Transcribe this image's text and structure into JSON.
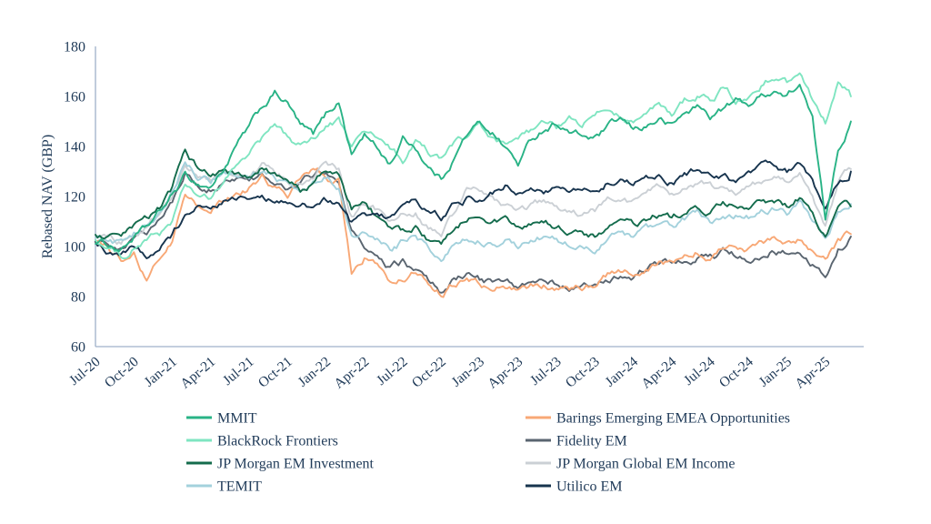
{
  "chart_data": {
    "type": "line",
    "title": "",
    "ylabel": "Rebased NAV (GBP)",
    "xlabel": "",
    "ylim": [
      60,
      180
    ],
    "yticks": [
      60,
      80,
      100,
      120,
      140,
      160,
      180
    ],
    "grid": false,
    "legend_position": "bottom-two-columns",
    "axis_color": "#9FB1C9",
    "text_color": "#1F3A58",
    "background_color": "#FFFFFF",
    "x_tick_labels": [
      "Jul-20",
      "Oct-20",
      "Jan-21",
      "Apr-21",
      "Jul-21",
      "Oct-21",
      "Jan-22",
      "Apr-22",
      "Jul-22",
      "Oct-22",
      "Jan-23",
      "Apr-23",
      "Jul-23",
      "Oct-23",
      "Jan-24",
      "Apr-24",
      "Jul-24",
      "Oct-24",
      "Jan-25",
      "Apr-25"
    ],
    "x_unit": "month",
    "x_start": "Jul-20",
    "x_end": "Jun-25",
    "series": [
      {
        "name": "MMIT",
        "color": "#29B386",
        "legend_column": "left",
        "values": [
          102,
          101,
          99,
          104,
          107,
          113,
          120,
          128,
          125,
          124,
          131,
          140,
          147,
          155,
          161,
          157,
          148,
          144,
          152,
          158,
          137,
          145,
          139,
          133,
          143,
          140,
          132,
          127,
          136,
          145,
          149,
          146,
          140,
          133,
          142,
          147,
          150,
          146,
          144,
          143,
          147,
          150,
          146,
          148,
          151,
          148,
          153,
          156,
          152,
          155,
          158,
          157,
          160,
          163,
          160,
          165,
          150,
          110,
          140,
          150
        ]
      },
      {
        "name": "BlackRock Frontiers",
        "color": "#7FE5C1",
        "legend_column": "left",
        "values": [
          103,
          99,
          96,
          100,
          103,
          105,
          110,
          124,
          120,
          118,
          125,
          132,
          138,
          143,
          148,
          143,
          140,
          144,
          148,
          150,
          140,
          145,
          143,
          138,
          134,
          141,
          137,
          134,
          141,
          144,
          147,
          142,
          139,
          141,
          145,
          148,
          147,
          150,
          148,
          152,
          155,
          153,
          150,
          153,
          156,
          152,
          158,
          161,
          159,
          163,
          158,
          160,
          165,
          168,
          165,
          171,
          160,
          150,
          166,
          160
        ]
      },
      {
        "name": "JP Morgan EM Investment",
        "color": "#146C4D",
        "legend_column": "left",
        "values": [
          104,
          103,
          102,
          106,
          110,
          115,
          122,
          138,
          132,
          128,
          130,
          128,
          126,
          130,
          128,
          125,
          122,
          126,
          130,
          128,
          115,
          118,
          112,
          106,
          105,
          108,
          102,
          99,
          107,
          112,
          114,
          112,
          110,
          106,
          108,
          110,
          108,
          106,
          105,
          104,
          108,
          110,
          108,
          110,
          112,
          110,
          114,
          115,
          113,
          116,
          115,
          114,
          116,
          118,
          116,
          120,
          112,
          104,
          113,
          116
        ]
      },
      {
        "name": "TEMIT",
        "color": "#A3D1DC",
        "legend_column": "left",
        "values": [
          104,
          102,
          101,
          105,
          108,
          114,
          121,
          133,
          128,
          126,
          130,
          129,
          127,
          131,
          128,
          124,
          120,
          124,
          127,
          125,
          103,
          107,
          103,
          99,
          102,
          104,
          99,
          95,
          102,
          105,
          104,
          102,
          103,
          100,
          102,
          104,
          102,
          100,
          99,
          98,
          102,
          105,
          103,
          106,
          108,
          107,
          110,
          112,
          110,
          112,
          113,
          112,
          114,
          116,
          114,
          117,
          110,
          103,
          113,
          117
        ]
      },
      {
        "name": "Barings Emerging EMEA Opportunities",
        "color": "#F8A876",
        "legend_column": "right",
        "values": [
          102,
          99,
          95,
          97,
          87,
          96,
          103,
          121,
          116,
          113,
          118,
          122,
          124,
          128,
          124,
          120,
          126,
          130,
          128,
          126,
          90,
          96,
          92,
          86,
          88,
          90,
          86,
          82,
          85,
          88,
          86,
          84,
          85,
          83,
          84,
          85,
          84,
          83,
          84,
          85,
          88,
          90,
          89,
          92,
          94,
          93,
          96,
          99,
          97,
          100,
          102,
          100,
          101,
          103,
          101,
          103,
          99,
          96,
          102,
          105
        ]
      },
      {
        "name": "Fidelity EM",
        "color": "#5A6570",
        "legend_column": "right",
        "values": [
          103,
          101,
          100,
          104,
          106,
          112,
          118,
          130,
          126,
          124,
          127,
          128,
          126,
          129,
          126,
          123,
          125,
          128,
          130,
          128,
          108,
          100,
          95,
          90,
          93,
          90,
          85,
          81,
          88,
          90,
          87,
          85,
          86,
          84,
          86,
          88,
          86,
          85,
          84,
          85,
          87,
          89,
          88,
          91,
          93,
          92,
          94,
          96,
          95,
          97,
          96,
          95,
          97,
          99,
          97,
          99,
          94,
          87,
          99,
          104
        ]
      },
      {
        "name": "JP Morgan Global EM Income",
        "color": "#CBD0D5",
        "legend_column": "right",
        "values": [
          104,
          102,
          101,
          105,
          108,
          114,
          121,
          134,
          129,
          127,
          131,
          130,
          128,
          132,
          130,
          127,
          125,
          129,
          133,
          131,
          113,
          118,
          114,
          110,
          112,
          114,
          108,
          104,
          112,
          125,
          122,
          118,
          116,
          113,
          115,
          117,
          115,
          113,
          112,
          114,
          117,
          120,
          118,
          121,
          123,
          121,
          124,
          126,
          124,
          123,
          122,
          124,
          126,
          128,
          126,
          130,
          120,
          108,
          126,
          131
        ]
      },
      {
        "name": "Utilico EM",
        "color": "#17344E",
        "legend_column": "right",
        "values": [
          101,
          98,
          97,
          100,
          96,
          100,
          104,
          112,
          115,
          113,
          116,
          118,
          120,
          122,
          119,
          117,
          115,
          116,
          118,
          117,
          109,
          115,
          113,
          111,
          117,
          119,
          115,
          112,
          116,
          119,
          118,
          121,
          124,
          122,
          124,
          123,
          125,
          123,
          124,
          122,
          126,
          128,
          125,
          127,
          129,
          126,
          128,
          130,
          128,
          127,
          126,
          128,
          130,
          131,
          129,
          132,
          125,
          116,
          127,
          130
        ]
      }
    ]
  }
}
